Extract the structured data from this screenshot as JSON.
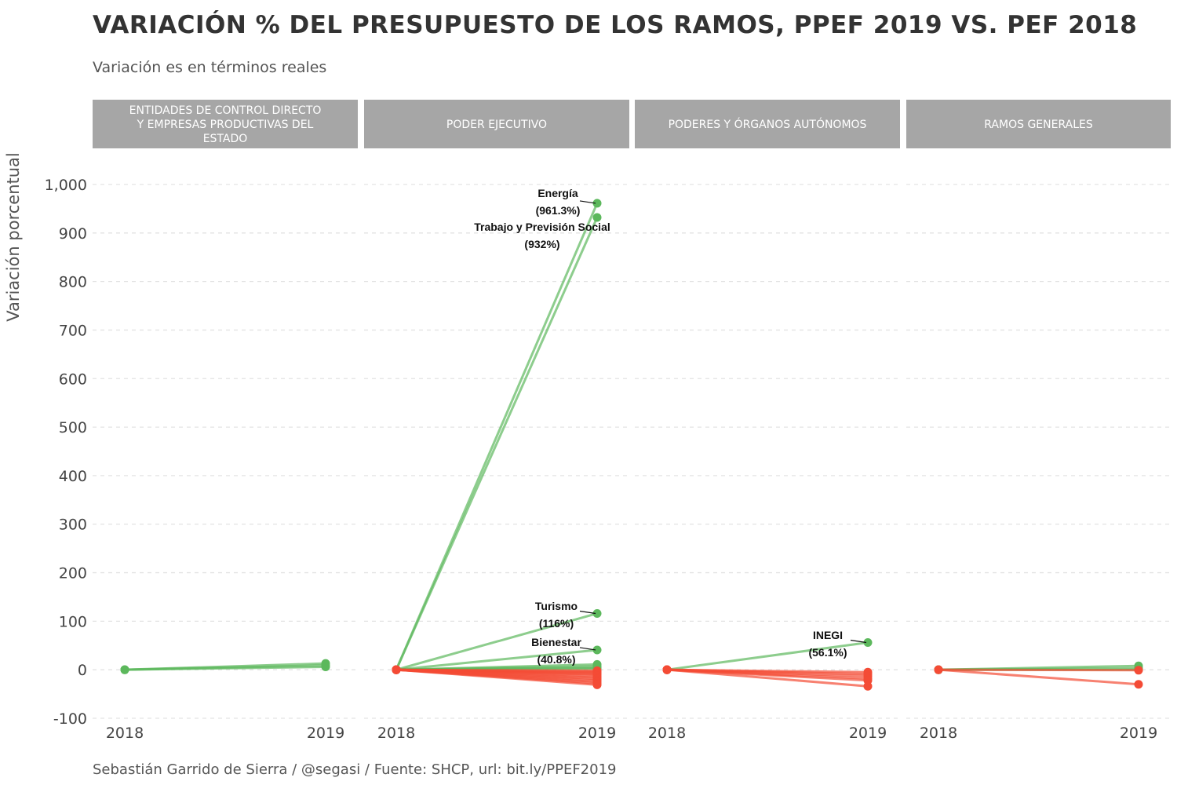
{
  "title": "VARIACIÓN % DEL PRESUPUESTO DE LOS RAMOS, PPEF 2019 VS. PEF 2018",
  "subtitle": "Variación es en términos reales",
  "caption": "Sebastián Garrido de Sierra / @segasi / Fuente: SHCP, url: bit.ly/PPEF2019",
  "colors": {
    "positive": "#5cb85c",
    "negative": "#f44b35",
    "strip": "#a6a6a6",
    "grid": "#e3e3e3"
  },
  "chart_data": {
    "type": "line",
    "ylabel": "Variación porcentual",
    "ylim": [
      -100,
      1000
    ],
    "yticks": [
      -100,
      0,
      100,
      200,
      300,
      400,
      500,
      600,
      700,
      800,
      900,
      1000
    ],
    "ytick_labels": [
      "-100",
      "0",
      "100",
      "200",
      "300",
      "400",
      "500",
      "600",
      "700",
      "800",
      "900",
      "1,000"
    ],
    "x": [
      "2018",
      "2019"
    ],
    "grid": "horizontal dashed",
    "facets": [
      {
        "label_lines": [
          "ENTIDADES DE CONTROL DIRECTO",
          "Y EMPRESAS PRODUCTIVAS DEL",
          "ESTADO"
        ],
        "series": [
          {
            "values": [
              0,
              13
            ]
          },
          {
            "values": [
              0,
              9
            ]
          },
          {
            "values": [
              0,
              6
            ]
          }
        ]
      },
      {
        "label_lines": [
          "PODER EJECUTIVO"
        ],
        "series": [
          {
            "values": [
              0,
              961.3
            ],
            "annotation": [
              "Energía",
              "(961.3%)"
            ]
          },
          {
            "values": [
              0,
              932
            ],
            "annotation": [
              "Trabajo y Previsión Social",
              "(932%)"
            ]
          },
          {
            "values": [
              0,
              116
            ],
            "annotation": [
              "Turismo",
              "(116%)"
            ]
          },
          {
            "values": [
              0,
              40.8
            ],
            "annotation": [
              "Bienestar",
              "(40.8%)"
            ]
          },
          {
            "values": [
              0,
              11
            ]
          },
          {
            "values": [
              0,
              7
            ]
          },
          {
            "values": [
              0,
              4
            ]
          },
          {
            "values": [
              0,
              2
            ]
          },
          {
            "values": [
              0,
              -2
            ]
          },
          {
            "values": [
              0,
              -4
            ]
          },
          {
            "values": [
              0,
              -6
            ]
          },
          {
            "values": [
              0,
              -8
            ]
          },
          {
            "values": [
              0,
              -10
            ]
          },
          {
            "values": [
              0,
              -13
            ]
          },
          {
            "values": [
              0,
              -16
            ]
          },
          {
            "values": [
              0,
              -19
            ]
          },
          {
            "values": [
              0,
              -22
            ]
          },
          {
            "values": [
              0,
              -25
            ]
          },
          {
            "values": [
              0,
              -28
            ]
          },
          {
            "values": [
              0,
              -31
            ]
          }
        ]
      },
      {
        "label_lines": [
          "PODERES Y ÓRGANOS AUTÓNOMOS"
        ],
        "series": [
          {
            "values": [
              0,
              56.1
            ],
            "annotation": [
              "INEGI",
              "(56.1%)"
            ]
          },
          {
            "values": [
              0,
              -5
            ]
          },
          {
            "values": [
              0,
              -9
            ]
          },
          {
            "values": [
              0,
              -13
            ]
          },
          {
            "values": [
              0,
              -18
            ]
          },
          {
            "values": [
              0,
              -22
            ]
          },
          {
            "values": [
              0,
              -34
            ]
          }
        ]
      },
      {
        "label_lines": [
          "RAMOS GENERALES"
        ],
        "series": [
          {
            "values": [
              0,
              8
            ]
          },
          {
            "values": [
              0,
              3
            ]
          },
          {
            "values": [
              0,
              0
            ]
          },
          {
            "values": [
              0,
              -1
            ]
          },
          {
            "values": [
              0,
              -30
            ]
          }
        ]
      }
    ]
  }
}
